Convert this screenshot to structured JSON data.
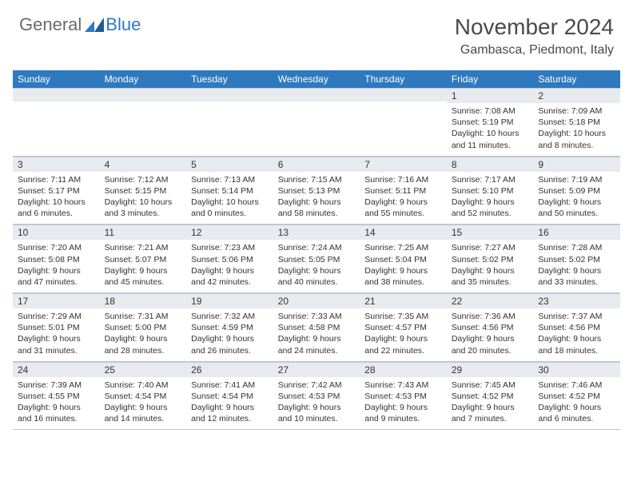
{
  "logo": {
    "general": "General",
    "blue": "Blue"
  },
  "title": "November 2024",
  "location": "Gambasca, Piedmont, Italy",
  "colors": {
    "header_bg": "#2f7abf",
    "daynum_bg": "#e7eaee",
    "border": "#b8c4d0",
    "text": "#333333",
    "logo_gray": "#6a6a6a",
    "logo_blue": "#2f7abf"
  },
  "dow": [
    "Sunday",
    "Monday",
    "Tuesday",
    "Wednesday",
    "Thursday",
    "Friday",
    "Saturday"
  ],
  "weeks": [
    [
      null,
      null,
      null,
      null,
      null,
      {
        "n": "1",
        "sr": "7:08 AM",
        "ss": "5:19 PM",
        "dl": "10 hours and 11 minutes."
      },
      {
        "n": "2",
        "sr": "7:09 AM",
        "ss": "5:18 PM",
        "dl": "10 hours and 8 minutes."
      }
    ],
    [
      {
        "n": "3",
        "sr": "7:11 AM",
        "ss": "5:17 PM",
        "dl": "10 hours and 6 minutes."
      },
      {
        "n": "4",
        "sr": "7:12 AM",
        "ss": "5:15 PM",
        "dl": "10 hours and 3 minutes."
      },
      {
        "n": "5",
        "sr": "7:13 AM",
        "ss": "5:14 PM",
        "dl": "10 hours and 0 minutes."
      },
      {
        "n": "6",
        "sr": "7:15 AM",
        "ss": "5:13 PM",
        "dl": "9 hours and 58 minutes."
      },
      {
        "n": "7",
        "sr": "7:16 AM",
        "ss": "5:11 PM",
        "dl": "9 hours and 55 minutes."
      },
      {
        "n": "8",
        "sr": "7:17 AM",
        "ss": "5:10 PM",
        "dl": "9 hours and 52 minutes."
      },
      {
        "n": "9",
        "sr": "7:19 AM",
        "ss": "5:09 PM",
        "dl": "9 hours and 50 minutes."
      }
    ],
    [
      {
        "n": "10",
        "sr": "7:20 AM",
        "ss": "5:08 PM",
        "dl": "9 hours and 47 minutes."
      },
      {
        "n": "11",
        "sr": "7:21 AM",
        "ss": "5:07 PM",
        "dl": "9 hours and 45 minutes."
      },
      {
        "n": "12",
        "sr": "7:23 AM",
        "ss": "5:06 PM",
        "dl": "9 hours and 42 minutes."
      },
      {
        "n": "13",
        "sr": "7:24 AM",
        "ss": "5:05 PM",
        "dl": "9 hours and 40 minutes."
      },
      {
        "n": "14",
        "sr": "7:25 AM",
        "ss": "5:04 PM",
        "dl": "9 hours and 38 minutes."
      },
      {
        "n": "15",
        "sr": "7:27 AM",
        "ss": "5:02 PM",
        "dl": "9 hours and 35 minutes."
      },
      {
        "n": "16",
        "sr": "7:28 AM",
        "ss": "5:02 PM",
        "dl": "9 hours and 33 minutes."
      }
    ],
    [
      {
        "n": "17",
        "sr": "7:29 AM",
        "ss": "5:01 PM",
        "dl": "9 hours and 31 minutes."
      },
      {
        "n": "18",
        "sr": "7:31 AM",
        "ss": "5:00 PM",
        "dl": "9 hours and 28 minutes."
      },
      {
        "n": "19",
        "sr": "7:32 AM",
        "ss": "4:59 PM",
        "dl": "9 hours and 26 minutes."
      },
      {
        "n": "20",
        "sr": "7:33 AM",
        "ss": "4:58 PM",
        "dl": "9 hours and 24 minutes."
      },
      {
        "n": "21",
        "sr": "7:35 AM",
        "ss": "4:57 PM",
        "dl": "9 hours and 22 minutes."
      },
      {
        "n": "22",
        "sr": "7:36 AM",
        "ss": "4:56 PM",
        "dl": "9 hours and 20 minutes."
      },
      {
        "n": "23",
        "sr": "7:37 AM",
        "ss": "4:56 PM",
        "dl": "9 hours and 18 minutes."
      }
    ],
    [
      {
        "n": "24",
        "sr": "7:39 AM",
        "ss": "4:55 PM",
        "dl": "9 hours and 16 minutes."
      },
      {
        "n": "25",
        "sr": "7:40 AM",
        "ss": "4:54 PM",
        "dl": "9 hours and 14 minutes."
      },
      {
        "n": "26",
        "sr": "7:41 AM",
        "ss": "4:54 PM",
        "dl": "9 hours and 12 minutes."
      },
      {
        "n": "27",
        "sr": "7:42 AM",
        "ss": "4:53 PM",
        "dl": "9 hours and 10 minutes."
      },
      {
        "n": "28",
        "sr": "7:43 AM",
        "ss": "4:53 PM",
        "dl": "9 hours and 9 minutes."
      },
      {
        "n": "29",
        "sr": "7:45 AM",
        "ss": "4:52 PM",
        "dl": "9 hours and 7 minutes."
      },
      {
        "n": "30",
        "sr": "7:46 AM",
        "ss": "4:52 PM",
        "dl": "9 hours and 6 minutes."
      }
    ]
  ],
  "labels": {
    "sunrise": "Sunrise:",
    "sunset": "Sunset:",
    "daylight": "Daylight:"
  }
}
